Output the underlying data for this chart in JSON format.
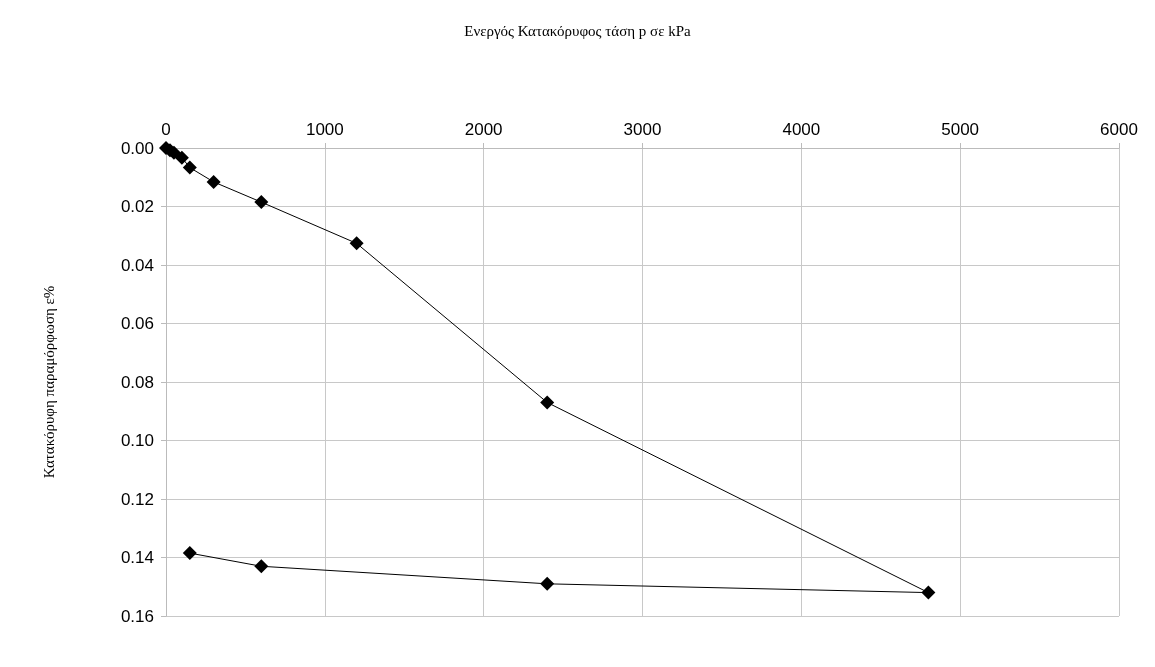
{
  "chart_data": {
    "type": "line",
    "title": "Ενεργός Κατακόρυφος τάση p σε kPa",
    "ylabel": "Κατακόρυφη παραμόρφωση ε%",
    "series": [
      {
        "color": "#000000",
        "x": [
          0,
          25,
          50,
          100,
          150,
          300,
          600,
          1200,
          2400,
          4800,
          2400,
          600,
          150
        ],
        "values": [
          0,
          0.0008,
          0.0016,
          0.0033,
          0.0067,
          0.0116,
          0.0185,
          0.0326,
          0.087,
          0.152,
          0.149,
          0.143,
          0.1385
        ]
      }
    ],
    "xlim": [
      0,
      6000
    ],
    "xticks": [
      0,
      1000,
      2000,
      3000,
      4000,
      5000,
      6000
    ],
    "ylim": [
      0.16,
      0
    ],
    "yticks": [
      {
        "value": 0,
        "label": "0.00"
      },
      {
        "value": 0.02,
        "label": "0.02"
      },
      {
        "value": 0.04,
        "label": "0.04"
      },
      {
        "value": 0.06,
        "label": "0.06"
      },
      {
        "value": 0.08,
        "label": "0.08"
      },
      {
        "value": 0.1,
        "label": "0.10"
      },
      {
        "value": 0.12,
        "label": "0.12"
      },
      {
        "value": 0.14,
        "label": "0.14"
      },
      {
        "value": 0.16,
        "label": "0.16"
      }
    ],
    "grid": true,
    "marker": "diamond",
    "line_style": "solid"
  }
}
